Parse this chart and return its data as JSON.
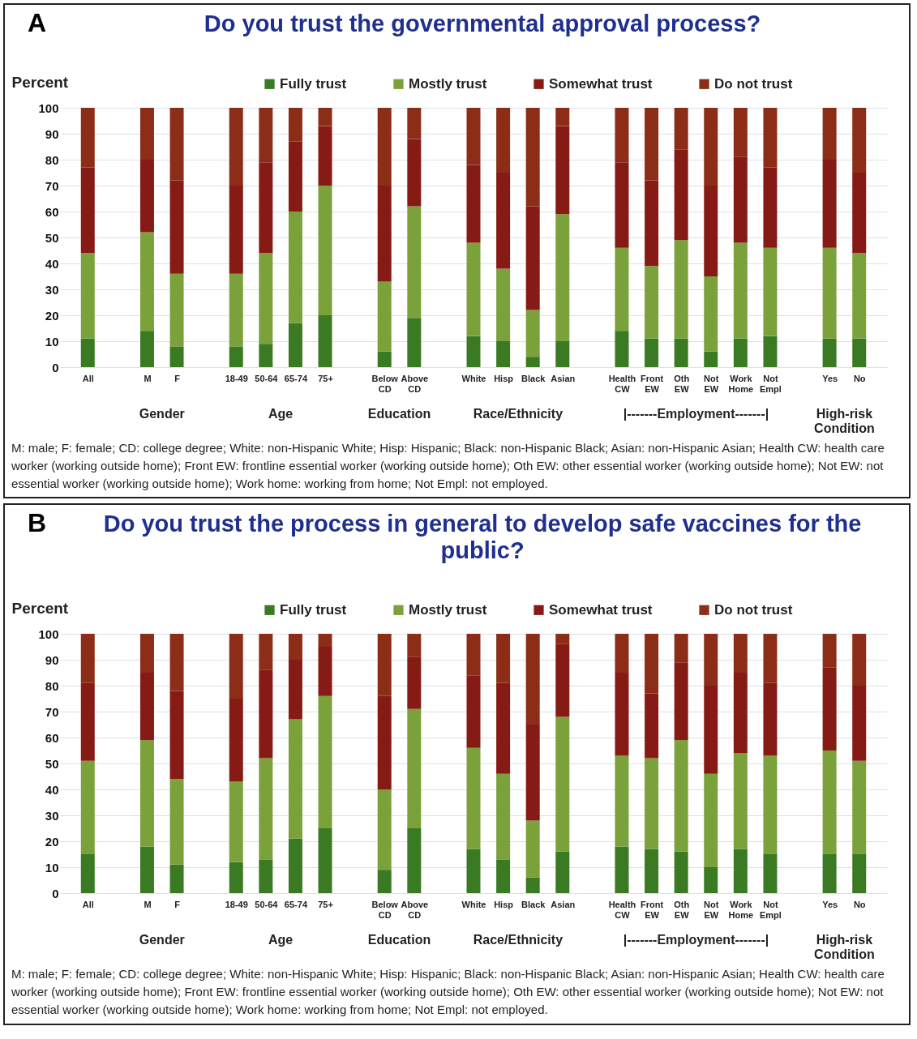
{
  "chart_data": [
    {
      "type": "bar",
      "title": "Do you trust the governmental approval process?",
      "ylabel": "Percent",
      "categories": [
        "All",
        null,
        "M",
        "F",
        null,
        "18-49",
        "50-64",
        "65-74",
        "75+",
        null,
        "Below\nCD",
        "Above\nCD",
        null,
        "White",
        "Hisp",
        "Black",
        "Asian",
        null,
        "Health\nCW",
        "Front\nEW",
        "Oth\nEW",
        "Not\nEW",
        "Work\nHome",
        "Not\nEmpl",
        null,
        "Yes",
        "No"
      ],
      "series": [
        {
          "name": "Fully trust",
          "color": "#3a7a22",
          "values": [
            11,
            null,
            14,
            8,
            null,
            8,
            9,
            17,
            20,
            null,
            6,
            19,
            null,
            12,
            10,
            4,
            10,
            null,
            14,
            11,
            11,
            6,
            11,
            12,
            null,
            11,
            11
          ]
        },
        {
          "name": "Mostly trust",
          "color": "#7ba23a",
          "values": [
            33,
            null,
            38,
            28,
            null,
            28,
            35,
            43,
            50,
            null,
            27,
            43,
            null,
            36,
            28,
            18,
            49,
            null,
            32,
            28,
            38,
            29,
            37,
            34,
            null,
            35,
            33
          ]
        },
        {
          "name": "Somewhat trust",
          "color": "#861b16",
          "values": [
            33,
            null,
            28,
            36,
            null,
            34,
            35,
            27,
            23,
            null,
            37,
            26,
            null,
            30,
            37,
            40,
            34,
            null,
            33,
            33,
            35,
            35,
            33,
            31,
            null,
            34,
            31
          ]
        },
        {
          "name": "Do not trust",
          "color": "#8c2e17",
          "values": [
            23,
            null,
            20,
            28,
            null,
            30,
            21,
            13,
            7,
            null,
            30,
            12,
            null,
            22,
            25,
            38,
            7,
            null,
            21,
            28,
            16,
            30,
            19,
            23,
            null,
            20,
            25
          ]
        }
      ],
      "stacked": true,
      "ylim": [
        0,
        100
      ],
      "yticks": [
        0,
        10,
        20,
        30,
        40,
        50,
        60,
        70,
        80,
        90,
        100
      ],
      "grid": "y",
      "legend": "top",
      "annotations": [
        "A",
        "Gender",
        "Age",
        "Education",
        "Race/Ethnicity",
        "|-------Employment-------|",
        "High-risk\nCondition",
        "M: male; F: female; CD: college degree; White: non-Hispanic White; Hisp: Hispanic; Black: non-Hispanic Black; Asian: non-Hispanic Asian; Health CW: health care worker (working outside home); Front EW: frontline essential worker (working outside home); Oth EW: other essential worker (working outside home); Not EW: not essential worker (working outside home); Work home: working from home; Not Empl: not employed."
      ]
    },
    {
      "type": "bar",
      "title": "Do you trust the process in general to develop safe vaccines for the public?",
      "ylabel": "Percent",
      "categories": [
        "All",
        null,
        "M",
        "F",
        null,
        "18-49",
        "50-64",
        "65-74",
        "75+",
        null,
        "Below\nCD",
        "Above\nCD",
        null,
        "White",
        "Hisp",
        "Black",
        "Asian",
        null,
        "Health\nCW",
        "Front\nEW",
        "Oth\nEW",
        "Not\nEW",
        "Work\nHome",
        "Not\nEmpl",
        null,
        "Yes",
        "No"
      ],
      "series": [
        {
          "name": "Fully trust",
          "color": "#3a7a22",
          "values": [
            15,
            null,
            18,
            11,
            null,
            12,
            13,
            21,
            25,
            null,
            9,
            25,
            null,
            17,
            13,
            6,
            16,
            null,
            18,
            17,
            16,
            10,
            17,
            15,
            null,
            15,
            15
          ]
        },
        {
          "name": "Mostly trust",
          "color": "#7ba23a",
          "values": [
            36,
            null,
            41,
            33,
            null,
            31,
            39,
            46,
            51,
            null,
            31,
            46,
            null,
            39,
            33,
            22,
            52,
            null,
            35,
            35,
            43,
            36,
            37,
            38,
            null,
            40,
            36
          ]
        },
        {
          "name": "Somewhat trust",
          "color": "#861b16",
          "values": [
            30,
            null,
            26,
            34,
            null,
            32,
            34,
            23,
            19,
            null,
            36,
            20,
            null,
            28,
            35,
            37,
            28,
            null,
            32,
            25,
            30,
            34,
            31,
            28,
            null,
            32,
            29
          ]
        },
        {
          "name": "Do not trust",
          "color": "#8c2e17",
          "values": [
            19,
            null,
            15,
            22,
            null,
            25,
            14,
            10,
            5,
            null,
            24,
            9,
            null,
            16,
            19,
            35,
            4,
            null,
            15,
            23,
            11,
            20,
            15,
            19,
            null,
            13,
            20
          ]
        }
      ],
      "stacked": true,
      "ylim": [
        0,
        100
      ],
      "yticks": [
        0,
        10,
        20,
        30,
        40,
        50,
        60,
        70,
        80,
        90,
        100
      ],
      "grid": "y",
      "legend": "top",
      "annotations": [
        "B",
        "Gender",
        "Age",
        "Education",
        "Race/Ethnicity",
        "|-------Employment-------|",
        "High-risk\nCondition",
        "M: male; F: female; CD: college degree; White: non-Hispanic White; Hisp: Hispanic; Black: non-Hispanic Black; Asian: non-Hispanic Asian; Health CW: health care worker (working outside home); Front EW: frontline essential worker (working outside home); Oth EW: other essential worker (working outside home); Not EW: not essential worker (working outside home); Work home: working from home; Not Empl: not employed."
      ]
    }
  ]
}
